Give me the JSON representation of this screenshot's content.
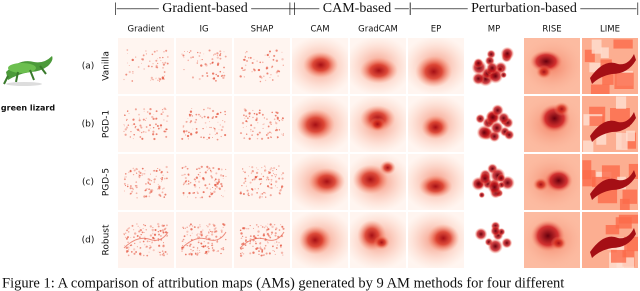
{
  "header": {
    "groups": [
      "|——— Gradient-based ———|",
      "|—— CAM-based —|",
      "|———— Perturbation-based ————|"
    ],
    "columns": [
      "Gradient",
      "IG",
      "SHAP",
      "CAM",
      "GradCAM",
      "EP",
      "MP",
      "RISE",
      "LIME"
    ]
  },
  "example": {
    "label": "green lizard"
  },
  "rows": [
    {
      "index": "(a)",
      "name": "Vanilla"
    },
    {
      "index": "(b)",
      "name": "PGD-1"
    },
    {
      "index": "(c)",
      "name": "PGD-5"
    },
    {
      "index": "(d)",
      "name": "Robust"
    }
  ],
  "caption": "Figure 1: A comparison of attribution maps (AMs) generated by 9 AM methods for four different"
}
